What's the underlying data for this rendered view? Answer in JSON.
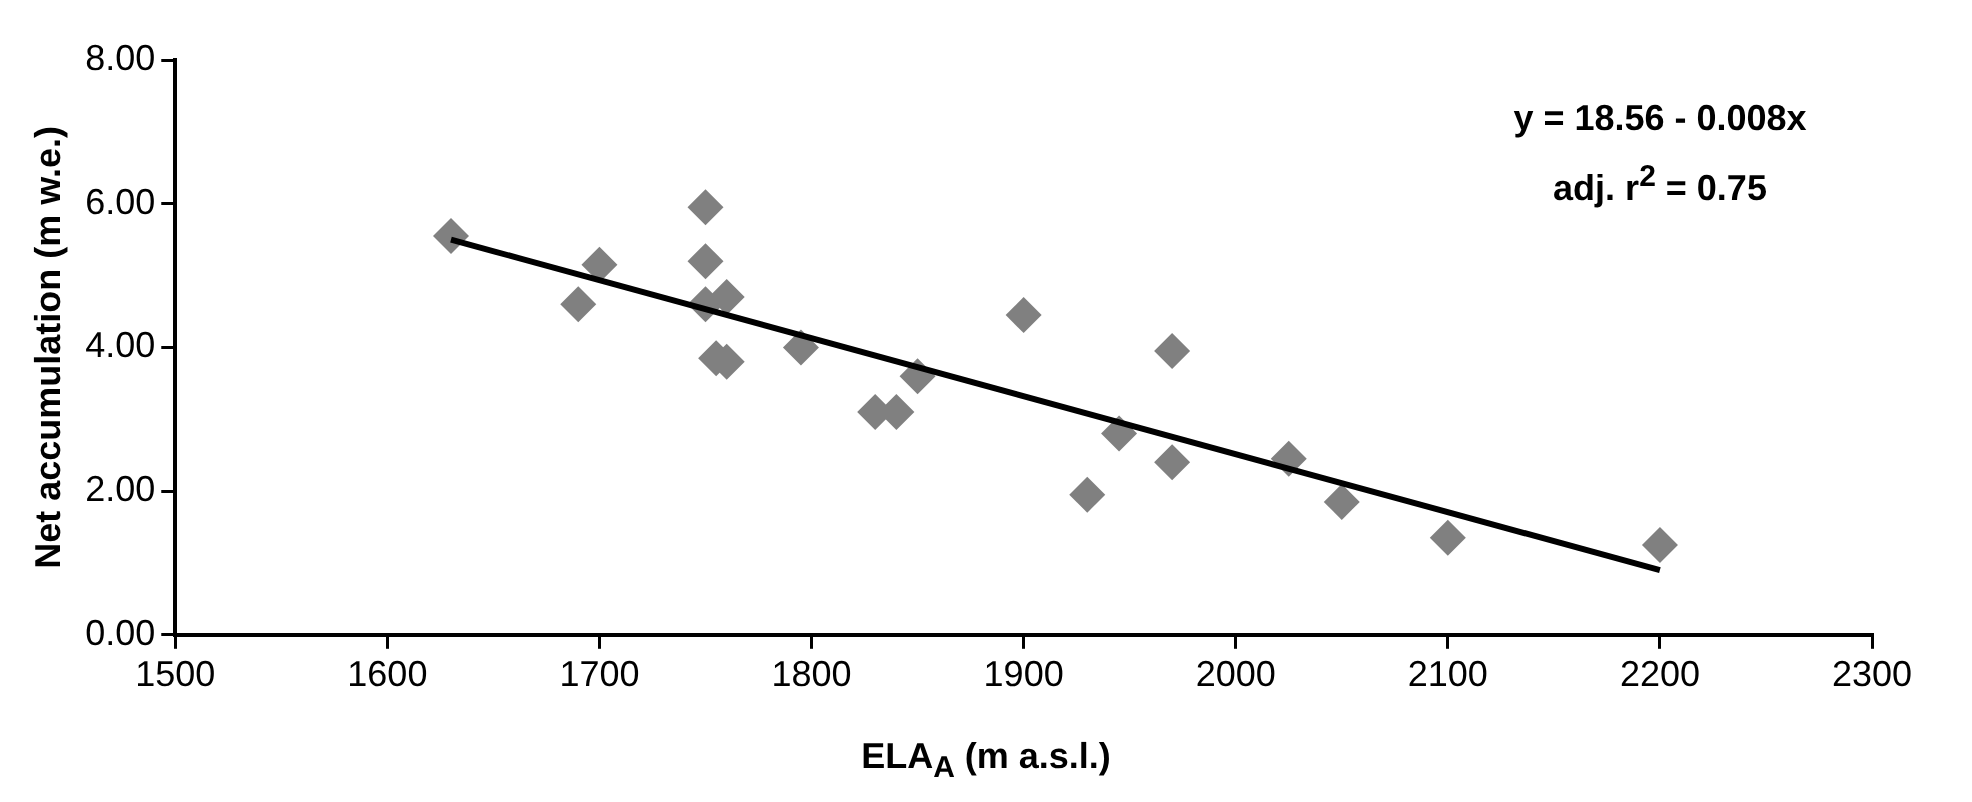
{
  "chart_data": {
    "type": "scatter",
    "xlabel": "ELA$_{A}$ (m a.s.l.)",
    "ylabel": "Net accumulation (m w.e.)",
    "marker": "diamond",
    "legend": false,
    "xlim": [
      1500,
      2300
    ],
    "xticks": [
      1500,
      1600,
      1700,
      1800,
      1900,
      2000,
      2100,
      2200,
      2300
    ],
    "ylim": [
      0,
      8
    ],
    "yticks": [
      {
        "value": 0,
        "label": "0.00"
      },
      {
        "value": 2,
        "label": "2.00"
      },
      {
        "value": 4,
        "label": "4.00"
      },
      {
        "value": 6,
        "label": "6.00"
      },
      {
        "value": 8,
        "label": "8.00"
      }
    ],
    "annotations": [
      "y = 18.56 - 0.008x",
      "adj. r$^{2}$ = 0.75"
    ],
    "series": [
      {
        "color": "#808080",
        "x": [
          1630,
          1690,
          1700,
          1750,
          1750,
          1750,
          1760,
          1755,
          1760,
          1795,
          1830,
          1840,
          1850,
          1900,
          1930,
          1945,
          1970,
          1970,
          2025,
          2050,
          2100,
          2200
        ],
        "values": [
          5.55,
          4.6,
          5.15,
          5.95,
          5.2,
          4.6,
          4.7,
          3.85,
          3.8,
          4.0,
          3.1,
          3.1,
          3.6,
          4.45,
          1.95,
          2.8,
          3.95,
          2.4,
          2.45,
          1.85,
          1.35,
          1.25
        ]
      },
      {
        "type": "line",
        "color": "#000000",
        "marker": "none",
        "x": [
          1630,
          2200
        ],
        "values": [
          5.5,
          0.9
        ]
      }
    ]
  }
}
